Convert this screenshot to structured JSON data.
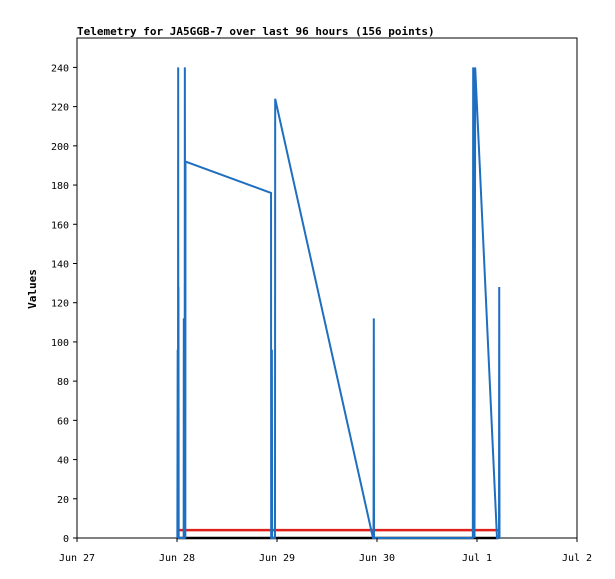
{
  "chart_data": {
    "type": "line",
    "title": "Telemetry for JA5GGB-7 over last 96 hours (156 points)",
    "ylabel": "Values",
    "xlabel": "",
    "grid": false,
    "legend": "none",
    "x_axis": {
      "type": "date",
      "range": [
        "2024-06-27T00:00",
        "2024-07-02T00:00"
      ],
      "ticks": [
        {
          "x": "2024-06-27T00:00",
          "label": "Jun 27"
        },
        {
          "x": "2024-06-28T00:00",
          "label": "Jun 28"
        },
        {
          "x": "2024-06-29T00:00",
          "label": "Jun 29"
        },
        {
          "x": "2024-06-30T00:00",
          "label": "Jun 30"
        },
        {
          "x": "2024-07-01T00:00",
          "label": "Jul 1"
        },
        {
          "x": "2024-07-02T00:00",
          "label": "Jul 2"
        }
      ]
    },
    "y_axis": {
      "range": [
        0,
        255
      ],
      "ticks": [
        0,
        20,
        40,
        60,
        80,
        100,
        120,
        140,
        160,
        180,
        200,
        220,
        240
      ]
    },
    "series": [
      {
        "color": "#1f6fc0",
        "points": [
          {
            "x": "2024-06-28T00:05",
            "y": 0
          },
          {
            "x": "2024-06-28T00:10",
            "y": 96
          },
          {
            "x": "2024-06-28T00:14",
            "y": 0
          },
          {
            "x": "2024-06-28T00:17",
            "y": 240
          },
          {
            "x": "2024-06-28T00:19",
            "y": 0
          },
          {
            "x": "2024-06-28T00:21",
            "y": 128
          },
          {
            "x": "2024-06-28T00:24",
            "y": 0
          },
          {
            "x": "2024-06-28T01:36",
            "y": 0
          },
          {
            "x": "2024-06-28T01:38",
            "y": 112
          },
          {
            "x": "2024-06-28T01:41",
            "y": 0
          },
          {
            "x": "2024-06-28T01:50",
            "y": 0
          },
          {
            "x": "2024-06-28T01:53",
            "y": 240
          },
          {
            "x": "2024-06-28T02:00",
            "y": 0
          },
          {
            "x": "2024-06-28T02:02",
            "y": 192
          },
          {
            "x": "2024-06-28T22:34",
            "y": 176
          },
          {
            "x": "2024-06-28T22:36",
            "y": 0
          },
          {
            "x": "2024-06-28T22:43",
            "y": 0
          },
          {
            "x": "2024-06-28T22:46",
            "y": 96
          },
          {
            "x": "2024-06-28T22:50",
            "y": 0
          },
          {
            "x": "2024-06-28T23:31",
            "y": 0
          },
          {
            "x": "2024-06-28T23:34",
            "y": 224
          },
          {
            "x": "2024-06-29T23:02",
            "y": 0
          },
          {
            "x": "2024-06-29T23:10",
            "y": 0
          },
          {
            "x": "2024-06-29T23:14",
            "y": 112
          },
          {
            "x": "2024-06-29T23:17",
            "y": 0
          },
          {
            "x": "2024-06-30T23:00",
            "y": 0
          },
          {
            "x": "2024-06-30T23:05",
            "y": 240
          },
          {
            "x": "2024-06-30T23:10",
            "y": 0
          },
          {
            "x": "2024-06-30T23:14",
            "y": 240
          },
          {
            "x": "2024-06-30T23:24",
            "y": 0
          },
          {
            "x": "2024-06-30T23:34",
            "y": 240
          },
          {
            "x": "2024-07-01T04:48",
            "y": 0
          },
          {
            "x": "2024-07-01T05:17",
            "y": 0
          },
          {
            "x": "2024-07-01T05:20",
            "y": 128
          },
          {
            "x": "2024-07-01T05:24",
            "y": 0
          }
        ]
      },
      {
        "color": "#e0201b",
        "points": [
          {
            "x": "2024-06-28T00:00",
            "y": 4
          },
          {
            "x": "2024-07-01T05:10",
            "y": 4
          }
        ]
      },
      {
        "color": "#000000",
        "points": [
          {
            "x": "2024-06-28T00:00",
            "y": 0
          },
          {
            "x": "2024-07-01T05:10",
            "y": 0
          }
        ]
      }
    ]
  }
}
